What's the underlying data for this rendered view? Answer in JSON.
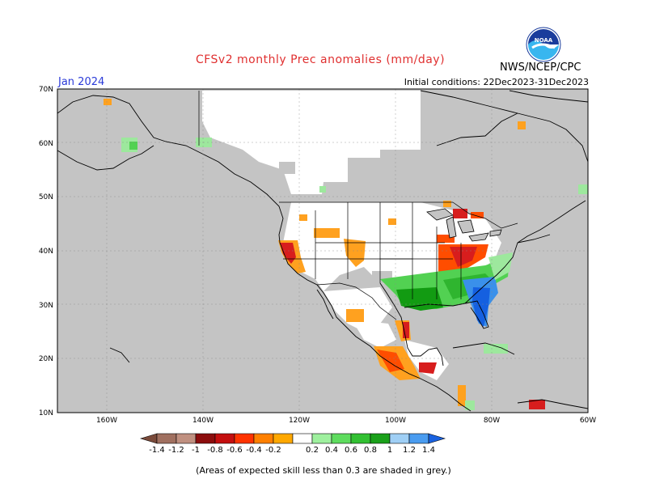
{
  "header": {
    "title": "CFSv2 monthly Prec anomalies (mm/day)",
    "month": "Jan 2024",
    "initial_conditions": "Initial conditions: 22Dec2023-31Dec2023",
    "agency": "NWS/NCEP/CPC",
    "logo_text": "NOAA"
  },
  "footer": {
    "skill_note": "(Areas of expected skill less than 0.3 are shaded in grey.)"
  },
  "map": {
    "lat_labels": [
      "70N",
      "60N",
      "50N",
      "40N",
      "30N",
      "20N",
      "10N"
    ],
    "lon_labels": [
      "160W",
      "140W",
      "120W",
      "100W",
      "80W",
      "60W"
    ],
    "colors": {
      "low_skill": "#c4c4c4",
      "no_signal": "#ffffff",
      "dry_-0.2": "#ffa11f",
      "dry_-0.4": "#ff4d00",
      "dry_-0.6": "#d71d1d",
      "wet_0.2": "#9de89d",
      "wet_0.4": "#52d152",
      "wet_0.6": "#2fb52f",
      "wet_0.8": "#129b12",
      "wet_1.2": "#3a90ea",
      "wet_1.4": "#1560e0"
    }
  },
  "colorbar": {
    "labels": [
      "-1.4",
      "-1.2",
      "-1",
      "-0.8",
      "-0.6",
      "-0.4",
      "-0.2",
      "0.2",
      "0.4",
      "0.6",
      "0.8",
      "1",
      "1.2",
      "1.4"
    ],
    "colors": [
      "#7a4a3a",
      "#a07060",
      "#c09080",
      "#8c0d0d",
      "#c40f0f",
      "#ff3300",
      "#ff8000",
      "#ffa800",
      "#ffffff",
      "#9ef09e",
      "#5edc5e",
      "#32c032",
      "#1aa01a",
      "#9fcff5",
      "#4a9cf0",
      "#1a62e0"
    ]
  }
}
